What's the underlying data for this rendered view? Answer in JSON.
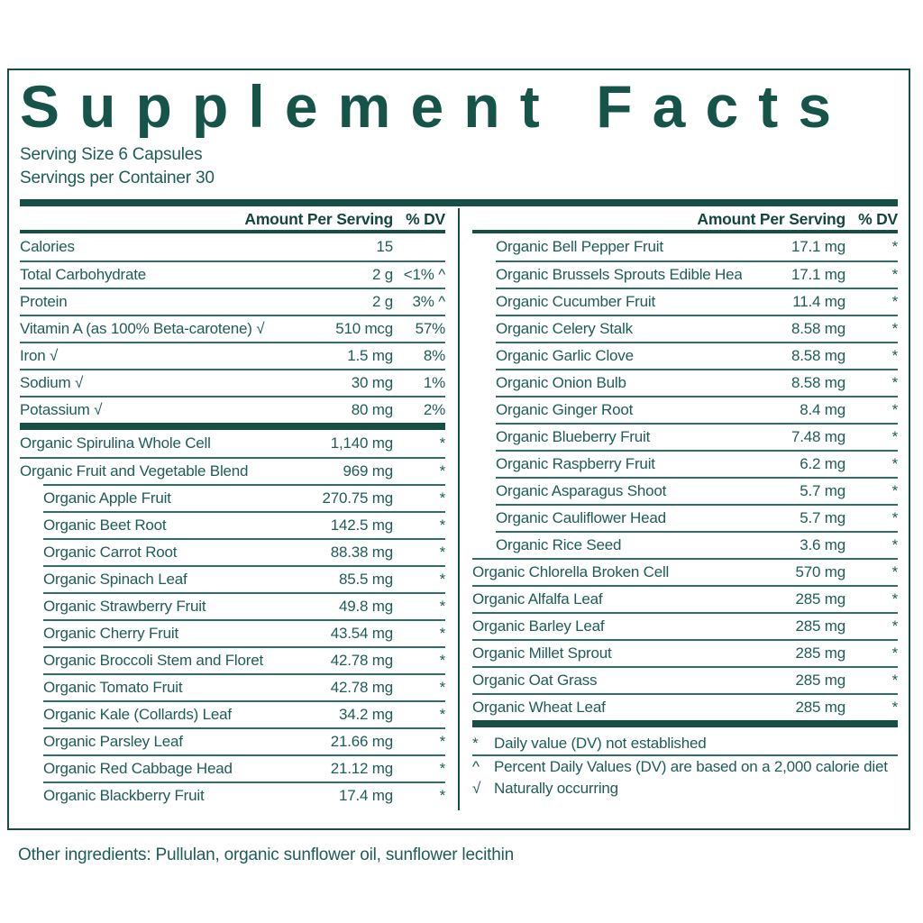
{
  "title": "Supplement Facts",
  "serving_size": "Serving Size 6 Capsules",
  "servings_per_container": "Servings per Container 30",
  "table_header": {
    "amount": "Amount Per Serving",
    "dv": "% DV"
  },
  "left_rows": [
    {
      "name": "Calories",
      "amount": "15",
      "dv": "",
      "indent": false
    },
    {
      "name": "Total Carbohydrate",
      "amount": "2 g",
      "dv": "<1% ^",
      "indent": false
    },
    {
      "name": "Protein",
      "amount": "2 g",
      "dv": "3% ^",
      "indent": false
    },
    {
      "name": "Vitamin A (as 100% Beta-carotene) √",
      "amount": "510 mcg",
      "dv": "57%",
      "indent": false
    },
    {
      "name": "Iron √",
      "amount": "1.5 mg",
      "dv": "8%",
      "indent": false
    },
    {
      "name": "Sodium √",
      "amount": "30 mg",
      "dv": "1%",
      "indent": false
    },
    {
      "name": "Potassium √",
      "amount": "80 mg",
      "dv": "2%",
      "indent": false,
      "thick_after": true
    },
    {
      "name": "Organic Spirulina Whole Cell",
      "amount": "1,140 mg",
      "dv": "*",
      "indent": false
    },
    {
      "name": "Organic Fruit and Vegetable Blend",
      "amount": "969 mg",
      "dv": "*",
      "indent": false
    },
    {
      "name": "Organic Apple Fruit",
      "amount": "270.75 mg",
      "dv": "*",
      "indent": true
    },
    {
      "name": "Organic Beet Root",
      "amount": "142.5 mg",
      "dv": "*",
      "indent": true
    },
    {
      "name": "Organic Carrot Root",
      "amount": "88.38 mg",
      "dv": "*",
      "indent": true
    },
    {
      "name": "Organic Spinach Leaf",
      "amount": "85.5 mg",
      "dv": "*",
      "indent": true
    },
    {
      "name": "Organic Strawberry Fruit",
      "amount": "49.8 mg",
      "dv": "*",
      "indent": true
    },
    {
      "name": "Organic Cherry Fruit",
      "amount": "43.54 mg",
      "dv": "*",
      "indent": true
    },
    {
      "name": "Organic Broccoli Stem and Floret",
      "amount": "42.78 mg",
      "dv": "*",
      "indent": true
    },
    {
      "name": "Organic Tomato Fruit",
      "amount": "42.78 mg",
      "dv": "*",
      "indent": true
    },
    {
      "name": "Organic Kale (Collards) Leaf",
      "amount": "34.2 mg",
      "dv": "*",
      "indent": true
    },
    {
      "name": "Organic Parsley Leaf",
      "amount": "21.66 mg",
      "dv": "*",
      "indent": true
    },
    {
      "name": "Organic Red Cabbage Head",
      "amount": "21.12 mg",
      "dv": "*",
      "indent": true
    },
    {
      "name": "Organic Blackberry Fruit",
      "amount": "17.4 mg",
      "dv": "*",
      "indent": true
    }
  ],
  "right_rows": [
    {
      "name": "Organic Bell Pepper Fruit",
      "amount": "17.1 mg",
      "dv": "*",
      "indent": true
    },
    {
      "name": "Organic Brussels Sprouts Edible Head",
      "amount": "17.1 mg",
      "dv": "*",
      "indent": true
    },
    {
      "name": "Organic Cucumber Fruit",
      "amount": "11.4 mg",
      "dv": "*",
      "indent": true
    },
    {
      "name": "Organic Celery Stalk",
      "amount": "8.58 mg",
      "dv": "*",
      "indent": true
    },
    {
      "name": "Organic Garlic Clove",
      "amount": "8.58 mg",
      "dv": "*",
      "indent": true
    },
    {
      "name": "Organic Onion Bulb",
      "amount": "8.58 mg",
      "dv": "*",
      "indent": true
    },
    {
      "name": "Organic Ginger Root",
      "amount": "8.4 mg",
      "dv": "*",
      "indent": true
    },
    {
      "name": "Organic Blueberry Fruit",
      "amount": "7.48 mg",
      "dv": "*",
      "indent": true
    },
    {
      "name": "Organic Raspberry Fruit",
      "amount": "6.2 mg",
      "dv": "*",
      "indent": true
    },
    {
      "name": "Organic Asparagus Shoot",
      "amount": "5.7 mg",
      "dv": "*",
      "indent": true
    },
    {
      "name": "Organic Cauliflower Head",
      "amount": "5.7 mg",
      "dv": "*",
      "indent": true
    },
    {
      "name": "Organic Rice Seed",
      "amount": "3.6 mg",
      "dv": "*",
      "indent": true
    },
    {
      "name": "Organic Chlorella Broken Cell",
      "amount": "570 mg",
      "dv": "*",
      "indent": false
    },
    {
      "name": "Organic Alfalfa Leaf",
      "amount": "285 mg",
      "dv": "*",
      "indent": false
    },
    {
      "name": "Organic Barley Leaf",
      "amount": "285 mg",
      "dv": "*",
      "indent": false
    },
    {
      "name": "Organic Millet Sprout",
      "amount": "285 mg",
      "dv": "*",
      "indent": false
    },
    {
      "name": "Organic Oat Grass",
      "amount": "285 mg",
      "dv": "*",
      "indent": false
    },
    {
      "name": "Organic Wheat Leaf",
      "amount": "285 mg",
      "dv": "*",
      "indent": false
    }
  ],
  "footnotes": [
    {
      "symbol": "*",
      "text": "Daily value (DV) not established",
      "separator_after": true
    },
    {
      "symbol": "^",
      "text": "Percent Daily Values (DV) are based on a 2,000 calorie diet",
      "separator_after": false
    },
    {
      "symbol": "√",
      "text": "Naturally occurring",
      "separator_after": false
    }
  ],
  "other_ingredients": "Other ingredients: Pullulan, organic sunflower oil, sunflower lecithin",
  "colors": {
    "dark_green": "#164f46",
    "text_teal": "#1e5c58",
    "line_teal": "#2e6f6a",
    "background": "#ffffff"
  }
}
